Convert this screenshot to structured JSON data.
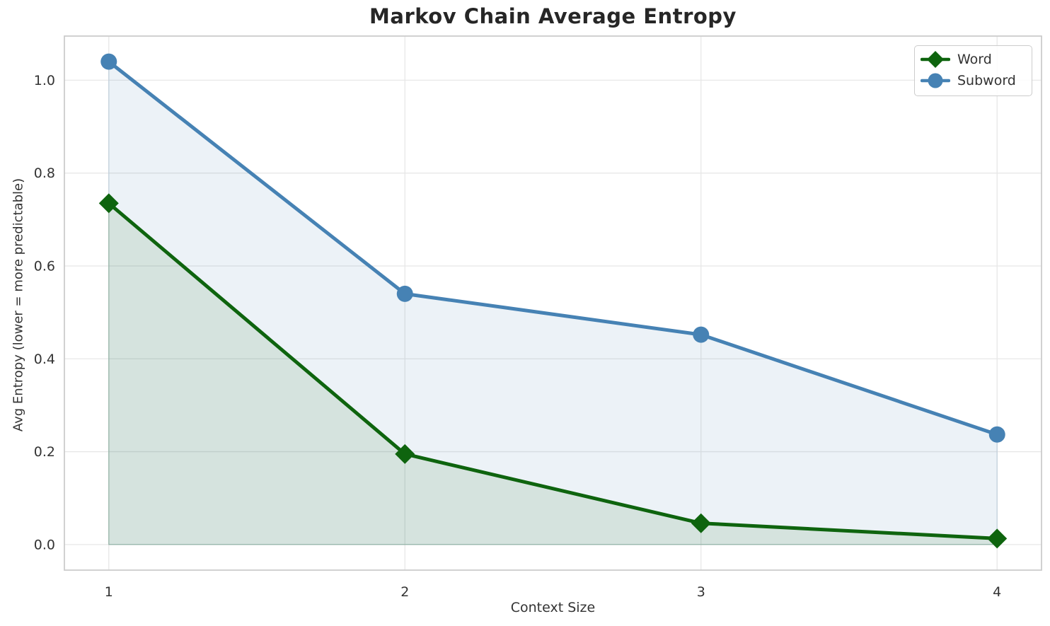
{
  "chart_data": {
    "type": "line",
    "title": "Markov Chain Average Entropy",
    "xlabel": "Context Size",
    "ylabel": "Avg Entropy (lower = more predictable)",
    "x": [
      1,
      2,
      3,
      4
    ],
    "series": [
      {
        "name": "Word",
        "values": [
          0.735,
          0.195,
          0.046,
          0.013
        ],
        "color": "#0e640e",
        "marker": "diamond",
        "fill_to_zero": true
      },
      {
        "name": "Subword",
        "values": [
          1.04,
          0.54,
          0.452,
          0.237
        ],
        "color": "#4682b4",
        "marker": "circle",
        "fill_to_zero": true
      }
    ],
    "xticks": [
      "1",
      "2",
      "3",
      "4"
    ],
    "yticks": [
      "0.0",
      "0.2",
      "0.4",
      "0.6",
      "0.8",
      "1.0"
    ],
    "xlim": [
      0.85,
      4.15
    ],
    "ylim": [
      -0.055,
      1.095
    ],
    "grid": true,
    "fill_opacity": 0.1,
    "line_width": 5,
    "legend": {
      "position": "upper right",
      "entries": [
        "Word",
        "Subword"
      ]
    },
    "colors": {
      "grid": "#e7e7e7",
      "spine": "#cccccc",
      "tick_text": "#333333",
      "title_text": "#262626",
      "background": "#ffffff"
    }
  }
}
